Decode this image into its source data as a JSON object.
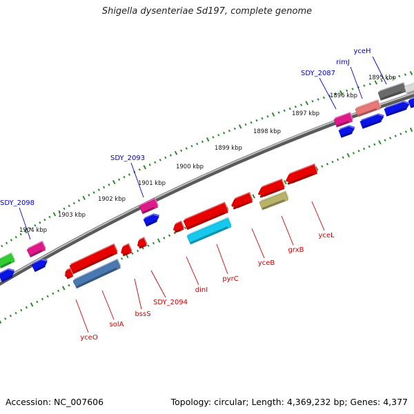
{
  "title": "Shigella dysenteriae Sd197, complete genome",
  "accession": "Accession: NC_007606",
  "summary": "Topology: circular; Length: 4,369,232 bp; Genes: 4,377",
  "colors": {
    "backbone": "#8c8c8c",
    "tick_marks": "#2a8a2a",
    "plus_strand_label": "#0000c8",
    "minus_strand_label": "#cc0000",
    "red_feature": "#e80000",
    "blue_feature": "#0a14e6",
    "magenta_feature": "#e0198a",
    "cyan_feature": "#14c8ee",
    "steelblue_feature": "#4a78b0",
    "olive_feature": "#b8b26a",
    "salmon_feature": "#e87878",
    "gray_feature": "#6a6a6a",
    "green_feature": "#33cc33"
  },
  "ticks": [
    "1904 kbp",
    "1903 kbp",
    "1902 kbp",
    "1901 kbp",
    "1900 kbp",
    "1899 kbp",
    "1898 kbp",
    "1897 kbp",
    "1896 kbp",
    "1895 kbp"
  ],
  "plus_strand_genes": [
    "SDY_2098",
    "SDY_2093",
    "SDY_2087",
    "rimJ",
    "yceH"
  ],
  "minus_strand_genes": [
    "yceO",
    "solA",
    "bssS",
    "SDY_2094",
    "dinI",
    "pyrC",
    "yceB",
    "grxB",
    "yceL"
  ]
}
